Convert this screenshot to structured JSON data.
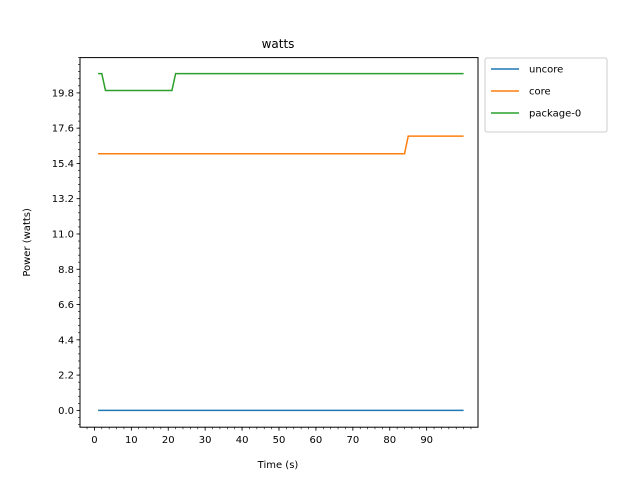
{
  "chart_data": {
    "type": "line",
    "title": "watts",
    "xlabel": "Time (s)",
    "ylabel": "Power (watts)",
    "xlim": [
      -3.9,
      103.9
    ],
    "ylim": [
      -1.05,
      22.0
    ],
    "xticks": [
      0,
      10,
      20,
      30,
      40,
      50,
      60,
      70,
      80,
      90
    ],
    "xtick_labels": [
      "0",
      "10",
      "20",
      "30",
      "40",
      "50",
      "60",
      "70",
      "80",
      "90"
    ],
    "yticks": [
      0.0,
      2.2,
      4.4,
      6.6,
      8.8,
      11.0,
      13.2,
      15.4,
      17.6,
      19.8
    ],
    "ytick_labels": [
      "0.0",
      "2.2",
      "4.4",
      "6.6",
      "8.8",
      "11.0",
      "13.2",
      "15.4",
      "17.6",
      "19.8"
    ],
    "minor_y_step": 0.44,
    "minor_x_step": 2,
    "grid": false,
    "legend_position": "outside-upper-right",
    "series": [
      {
        "name": "uncore",
        "color": "#1f77b4",
        "x": [
          1,
          100
        ],
        "y": [
          0.0,
          0.0
        ]
      },
      {
        "name": "core",
        "color": "#ff7f0e",
        "x": [
          1,
          84,
          85,
          100
        ],
        "y": [
          16.0,
          16.0,
          17.1,
          17.1
        ]
      },
      {
        "name": "package-0",
        "color": "#2ca02c",
        "x": [
          1,
          2,
          3,
          21,
          22,
          100
        ],
        "y": [
          21.0,
          21.0,
          19.95,
          19.95,
          21.0,
          21.0
        ]
      }
    ]
  }
}
